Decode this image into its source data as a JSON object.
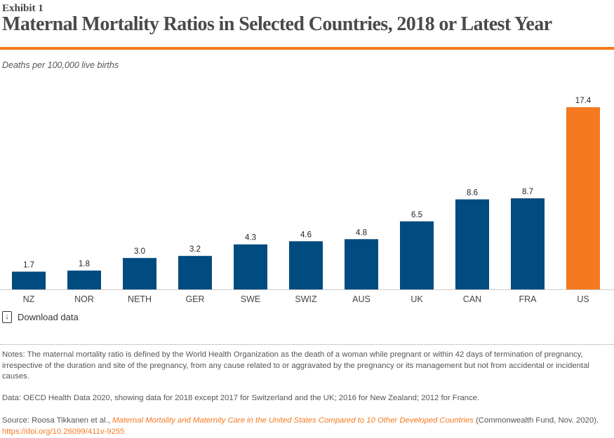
{
  "header": {
    "exhibit": "Exhibit 1",
    "title": "Maternal Mortality Ratios in Selected Countries, 2018 or Latest Year"
  },
  "chart_data": {
    "type": "bar",
    "ylabel": "Deaths per 100,000 live births",
    "categories": [
      "NZ",
      "NOR",
      "NETH",
      "GER",
      "SWE",
      "SWIZ",
      "AUS",
      "UK",
      "CAN",
      "FRA",
      "US"
    ],
    "values": [
      1.7,
      1.8,
      3.0,
      3.2,
      4.3,
      4.6,
      4.8,
      6.5,
      8.6,
      8.7,
      17.4
    ],
    "data_labels": [
      "1.7",
      "1.8",
      "3.0",
      "3.2",
      "4.3",
      "4.6",
      "4.8",
      "6.5",
      "8.6",
      "8.7",
      "17.4"
    ],
    "ylim": [
      0,
      17.4
    ],
    "grid": false,
    "colors": {
      "default": "#004b7f",
      "highlight": "#f47920"
    },
    "highlight": "US"
  },
  "download": {
    "label": "Download data",
    "icon": "download-icon"
  },
  "notes": {
    "notes": "Notes: The maternal mortality ratio is defined by the World Health Organization as the death of a woman while pregnant or within 42 days of termination of pregnancy, irrespective of the duration and site of the pregnancy, from any cause related to or aggravated by the pregnancy or its management but not from accidental or incidental causes.",
    "data": "Data: OECD Health Data 2020, showing data for 2018 except 2017 for Switzerland and the UK; 2016 for New Zealand; 2012 for France.",
    "source_prefix": "Source: Roosa Tikkanen et al., ",
    "source_title": "Maternal Mortality and Maternity Care in the United States Compared to 10 Other Developed Countries",
    "source_suffix": " (Commonwealth Fund, Nov. 2020). ",
    "source_link": "https://doi.org/10.26099/411v-9255"
  }
}
